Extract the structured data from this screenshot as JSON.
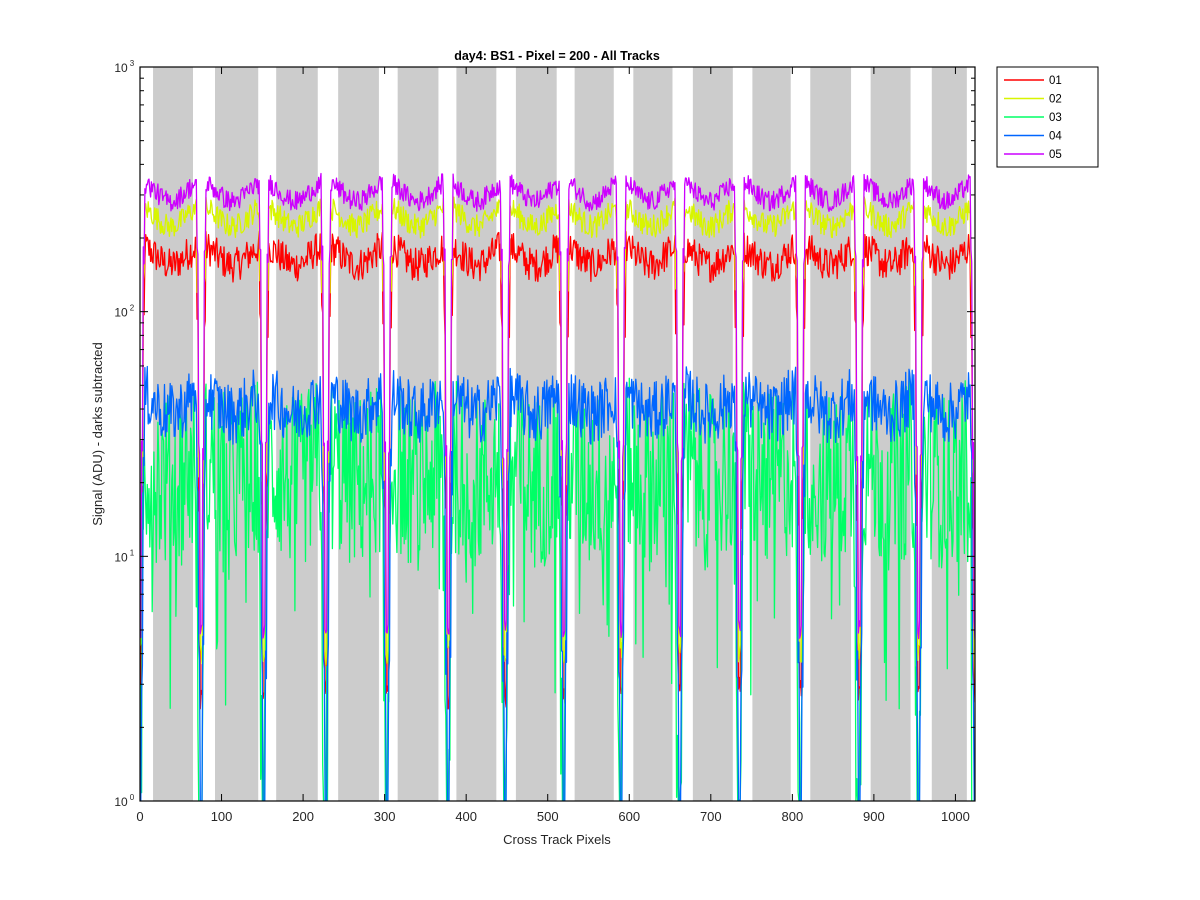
{
  "chart_data": {
    "type": "line",
    "title": "day4: BS1 - Pixel = 200 - All Tracks",
    "xlabel": "Cross Track Pixels",
    "ylabel": "Signal (ADU) - darks subtracted",
    "xlim": [
      0,
      1024
    ],
    "ylim": [
      1,
      1000
    ],
    "yscale": "log",
    "x_ticks": [
      0,
      100,
      200,
      300,
      400,
      500,
      600,
      700,
      800,
      900,
      1000
    ],
    "x_tick_labels": [
      "0",
      "100",
      "200",
      "300",
      "400",
      "500",
      "600",
      "700",
      "800",
      "900",
      "1000"
    ],
    "y_ticks": [
      {
        "value": 1,
        "base": "10",
        "exp": "0"
      },
      {
        "value": 10,
        "base": "10",
        "exp": "1"
      },
      {
        "value": 100,
        "base": "10",
        "exp": "2"
      },
      {
        "value": 1000,
        "base": "10",
        "exp": "3"
      }
    ],
    "grid": false,
    "legend_placement": "outside-top-right",
    "shaded_bands": [
      [
        16,
        65
      ],
      [
        92,
        145
      ],
      [
        167,
        218
      ],
      [
        243,
        293
      ],
      [
        316,
        366
      ],
      [
        388,
        437
      ],
      [
        461,
        511
      ],
      [
        533,
        581
      ],
      [
        605,
        653
      ],
      [
        678,
        727
      ],
      [
        751,
        798
      ],
      [
        822,
        872
      ],
      [
        896,
        945
      ],
      [
        971,
        1014
      ]
    ],
    "segment_boundaries": [
      0,
      75,
      152,
      228,
      303,
      378,
      448,
      520,
      590,
      662,
      735,
      810,
      882,
      955,
      1024
    ],
    "series": [
      {
        "name": "01",
        "color": "#ff0000",
        "level": 170,
        "spread": 0.1
      },
      {
        "name": "02",
        "color": "#d8f500",
        "level": 245,
        "spread": 0.07
      },
      {
        "name": "03",
        "color": "#00ff66",
        "level": 22,
        "spread": 0.38
      },
      {
        "name": "04",
        "color": "#0066ff",
        "level": 42,
        "spread": 0.18
      },
      {
        "name": "05",
        "color": "#cc00ff",
        "level": 310,
        "spread": 0.06
      }
    ]
  }
}
